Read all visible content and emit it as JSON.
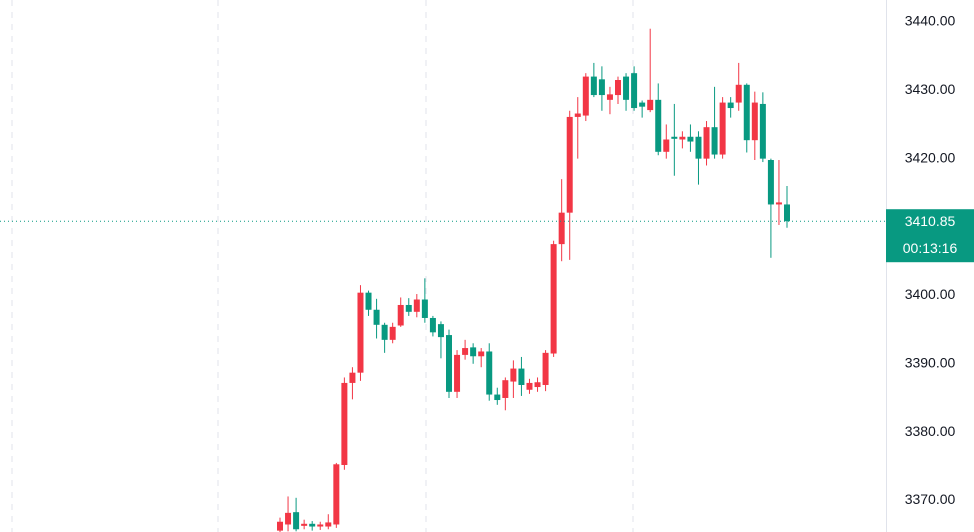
{
  "chart_data": {
    "type": "candlestick",
    "up_color": "#f23645",
    "down_color": "#089981",
    "open": [
      3365.6,
      3366.5,
      3368.3,
      3366.3,
      3366.6,
      3366.2,
      3366.2,
      3366.5,
      3375.2,
      3387.2,
      3388.7,
      3400.4,
      3397.9,
      3395.7,
      3393.5,
      3395.6,
      3398.6,
      3397.6,
      3399.4,
      3396.7,
      3395.8,
      3394.2,
      3385.9,
      3391.3,
      3392.4,
      3391.1,
      3391.8,
      3385.5,
      3385.0,
      3387.4,
      3389.3,
      3386.2,
      3386.6,
      3386.9,
      3391.5,
      3407.5,
      3412.1,
      3426.1,
      3426.3,
      3432.0,
      3431.6,
      3428.6,
      3429.3,
      3432.0,
      3432.5,
      3428.2,
      3427.1,
      3428.6,
      3421.0,
      3423.2,
      3422.8,
      3423.2,
      3423.2,
      3420.0,
      3424.6,
      3420.6,
      3428.2,
      3428.2,
      3430.8,
      3422.7,
      3428.0,
      3419.8,
      3413.3,
      3413.3
    ],
    "high": [
      3367.5,
      3370.6,
      3370.4,
      3367.2,
      3367.0,
      3366.9,
      3368.0,
      3375.5,
      3388.0,
      3389.5,
      3401.5,
      3400.7,
      3399.5,
      3396.0,
      3396.0,
      3399.7,
      3399.6,
      3400.2,
      3402.5,
      3397.0,
      3396.2,
      3395.0,
      3392.0,
      3393.5,
      3393.0,
      3392.3,
      3393.0,
      3386.5,
      3388.0,
      3390.5,
      3391.0,
      3387.8,
      3388.0,
      3392.0,
      3408.0,
      3417.0,
      3427.0,
      3429.0,
      3432.5,
      3434.0,
      3433.5,
      3430.5,
      3432.0,
      3432.5,
      3433.5,
      3428.5,
      3439.0,
      3431.0,
      3425.0,
      3428.0,
      3424.0,
      3425.0,
      3424.0,
      3425.5,
      3430.5,
      3429.0,
      3429.0,
      3434.0,
      3431.0,
      3429.8,
      3429.7,
      3420.0,
      3419.8,
      3416.0
    ],
    "low": [
      3365.4,
      3365.5,
      3365.5,
      3365.8,
      3365.6,
      3365.7,
      3365.8,
      3366.0,
      3374.5,
      3384.8,
      3387.5,
      3397.0,
      3393.7,
      3391.6,
      3393.0,
      3395.4,
      3397.0,
      3396.8,
      3396.0,
      3394.0,
      3390.8,
      3385.0,
      3385.0,
      3390.6,
      3390.0,
      3389.5,
      3384.6,
      3384.0,
      3383.2,
      3385.0,
      3385.3,
      3385.6,
      3385.9,
      3386.0,
      3391.0,
      3405.0,
      3405.2,
      3420.0,
      3425.5,
      3429.0,
      3427.0,
      3426.5,
      3428.0,
      3427.0,
      3427.0,
      3426.0,
      3426.8,
      3420.5,
      3420.0,
      3417.5,
      3421.5,
      3421.0,
      3416.2,
      3419.0,
      3420.0,
      3420.0,
      3426.0,
      3427.0,
      3420.9,
      3419.8,
      3419.5,
      3405.5,
      3410.3,
      3409.9
    ],
    "close": [
      3366.9,
      3368.2,
      3365.8,
      3366.6,
      3366.2,
      3366.5,
      3366.8,
      3375.3,
      3387.2,
      3388.7,
      3400.4,
      3397.9,
      3395.7,
      3393.5,
      3395.4,
      3398.6,
      3397.6,
      3399.4,
      3396.7,
      3394.6,
      3393.9,
      3385.9,
      3391.3,
      3392.3,
      3391.1,
      3391.8,
      3385.5,
      3384.7,
      3387.6,
      3389.3,
      3386.9,
      3387.2,
      3387.3,
      3391.6,
      3407.5,
      3412.1,
      3426.1,
      3426.6,
      3432.0,
      3429.3,
      3429.3,
      3429.4,
      3431.5,
      3428.6,
      3427.4,
      3427.6,
      3428.6,
      3421.0,
      3422.8,
      3422.9,
      3423.2,
      3422.5,
      3420.0,
      3424.6,
      3420.6,
      3428.2,
      3427.4,
      3430.8,
      3422.7,
      3428.2,
      3420.0,
      3413.3,
      3413.6,
      3410.85
    ],
    "ylim": [
      3365.4,
      3443.2
    ],
    "yticks": [
      {
        "value": 3370,
        "label": "3370.00"
      },
      {
        "value": 3380,
        "label": "3380.00"
      },
      {
        "value": 3390,
        "label": "3390.00"
      },
      {
        "value": 3400,
        "label": "3400.00"
      },
      {
        "value": 3420,
        "label": "3420.00"
      },
      {
        "value": 3430,
        "label": "3430.00"
      },
      {
        "value": 3440,
        "label": "3440.00"
      }
    ],
    "last_price": 3410.85,
    "countdown": "00:13:16"
  }
}
